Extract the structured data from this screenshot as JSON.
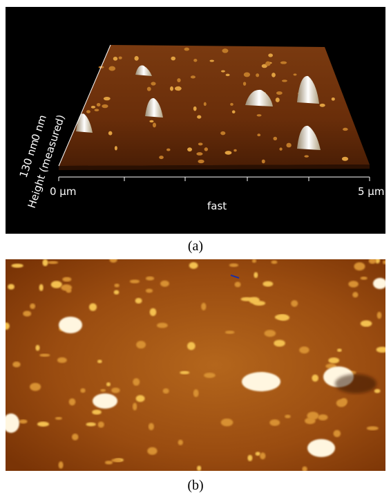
{
  "figure": {
    "panels": [
      {
        "label": "(a)",
        "axis": {
          "start": "0 µm",
          "end": "5 µm",
          "direction": "fast"
        },
        "zscale": {
          "max": "130 nm",
          "min": "0 nm",
          "label": "Height (measured)"
        }
      },
      {
        "label": "(b)"
      }
    ]
  }
}
